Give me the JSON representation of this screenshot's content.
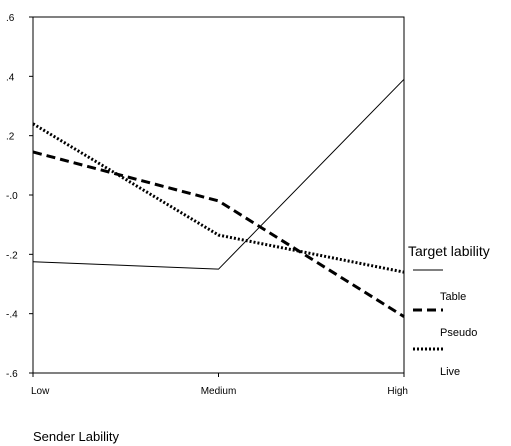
{
  "chart_data": {
    "type": "line",
    "categories": [
      "Low",
      "Medium",
      "High"
    ],
    "xlabel": "Sender Lability",
    "ylabel": "",
    "title": "",
    "ylim": [
      -0.6,
      0.6
    ],
    "yticks": [
      {
        "value": 0.6,
        "label": ".6"
      },
      {
        "value": 0.4,
        "label": ".4"
      },
      {
        "value": 0.2,
        "label": ".2"
      },
      {
        "value": 0.0,
        "label": "-.0"
      },
      {
        "value": -0.2,
        "label": "-.2"
      },
      {
        "value": -0.4,
        "label": "-.4"
      },
      {
        "value": -0.6,
        "label": "-.6"
      }
    ],
    "grid": false,
    "legend": {
      "title": "Target lability",
      "placement": "right"
    },
    "series": [
      {
        "name": "Table",
        "style": "solid",
        "values": [
          -0.225,
          -0.25,
          0.39
        ]
      },
      {
        "name": "Pseudo",
        "style": "dashed",
        "values": [
          0.145,
          -0.02,
          -0.41
        ]
      },
      {
        "name": "Live",
        "style": "dotted",
        "values": [
          0.24,
          -0.135,
          -0.26
        ]
      }
    ]
  }
}
